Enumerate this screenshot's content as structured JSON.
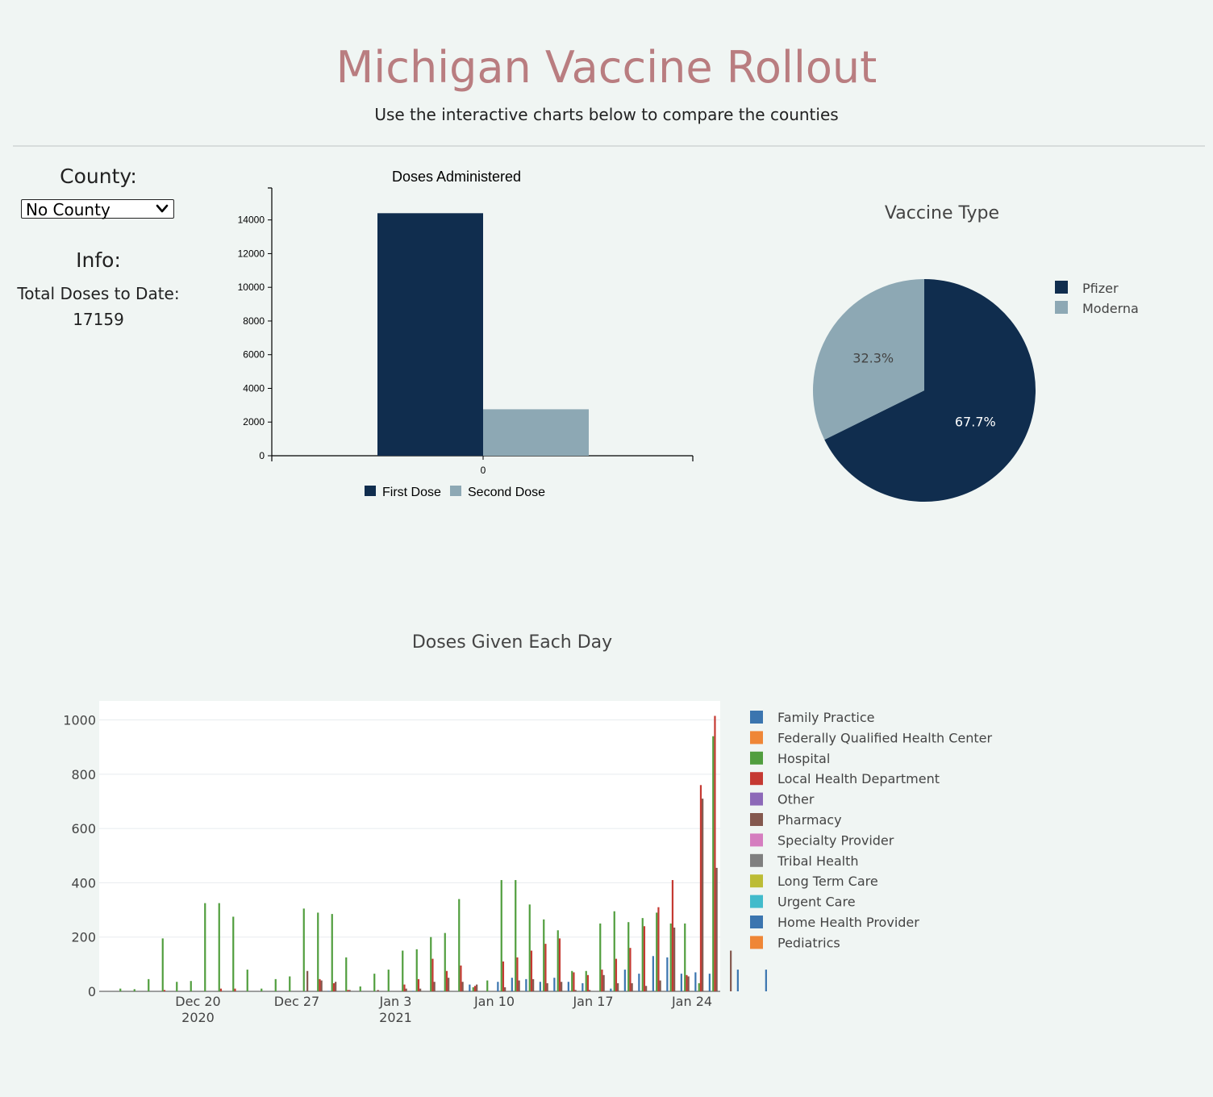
{
  "header": {
    "title": "Michigan Vaccine Rollout",
    "subtitle": "Use the interactive charts below to compare the counties"
  },
  "sidebar": {
    "county_label": "County:",
    "county_select": {
      "selected": "No County",
      "icon": "chevron-down-icon"
    },
    "info_label": "Info:",
    "total_doses_label": "Total Doses to Date:",
    "total_doses_value": "17159"
  },
  "colors": {
    "page_bg": "#f0f5f3",
    "title": "#b97d80",
    "first_dose": "#102d4e",
    "second_dose": "#8da8b4"
  },
  "chart_data": [
    {
      "id": "doses-administered",
      "type": "bar",
      "title": "Doses Administered",
      "categories": [
        "0"
      ],
      "series": [
        {
          "name": "First Dose",
          "values": [
            14400
          ],
          "color": "#102d4e"
        },
        {
          "name": "Second Dose",
          "values": [
            2759
          ],
          "color": "#8da8b4"
        }
      ],
      "yticks": [
        0,
        2000,
        4000,
        6000,
        8000,
        10000,
        12000,
        14000
      ],
      "ylim": [
        0,
        15900
      ],
      "legend": "bottom"
    },
    {
      "id": "vaccine-type",
      "type": "pie",
      "title": "Vaccine Type",
      "labels": [
        "Pfizer",
        "Moderna"
      ],
      "values": [
        67.7,
        32.3
      ],
      "value_labels": [
        "67.7%",
        "32.3%"
      ],
      "colors": [
        "#102d4e",
        "#8da8b4"
      ],
      "legend": "right"
    },
    {
      "id": "doses-given-each-day",
      "type": "bar",
      "title": "Doses Given Each Day",
      "x_start": "2020-12-14",
      "x_range": [
        "2020-12-13",
        "2021-01-26"
      ],
      "ylim": [
        0,
        1070
      ],
      "yticks": [
        0,
        200,
        400,
        600,
        800,
        1000
      ],
      "xticks": [
        {
          "date": "2020-12-20",
          "label": "Dec 20",
          "sub": "2020"
        },
        {
          "date": "2020-12-27",
          "label": "Dec 27",
          "sub": ""
        },
        {
          "date": "2021-01-03",
          "label": "Jan 3",
          "sub": "2021"
        },
        {
          "date": "2021-01-10",
          "label": "Jan 10",
          "sub": ""
        },
        {
          "date": "2021-01-17",
          "label": "Jan 17",
          "sub": ""
        },
        {
          "date": "2021-01-24",
          "label": "Jan 24",
          "sub": ""
        }
      ],
      "legend": "right",
      "series": [
        {
          "name": "Family Practice",
          "color": "#3b75af",
          "values": [
            0,
            0,
            0,
            0,
            0,
            0,
            0,
            0,
            0,
            0,
            0,
            0,
            0,
            0,
            0,
            2,
            0,
            0,
            0,
            0,
            0,
            2,
            0,
            2,
            0,
            25,
            0,
            35,
            50,
            45,
            35,
            50,
            35,
            30,
            0,
            10,
            80,
            65,
            130,
            125,
            65,
            70,
            65,
            0,
            80,
            0,
            80
          ]
        },
        {
          "name": "Federally Qualified Health Center",
          "color": "#ef8636",
          "values": [
            0,
            0,
            0,
            0,
            0,
            0,
            0,
            0,
            0,
            0,
            0,
            0,
            0,
            0,
            0,
            0,
            0,
            0,
            0,
            0,
            0,
            0,
            0,
            0,
            0,
            0,
            0,
            0,
            0,
            0,
            0,
            0,
            0,
            0,
            0,
            0,
            0,
            0,
            0,
            0,
            0,
            0,
            0,
            0,
            0,
            0,
            0
          ]
        },
        {
          "name": "Hospital",
          "color": "#519e3e",
          "values": [
            10,
            8,
            45,
            195,
            35,
            38,
            325,
            325,
            275,
            80,
            10,
            45,
            55,
            305,
            290,
            285,
            125,
            18,
            65,
            80,
            150,
            155,
            200,
            215,
            340,
            15,
            40,
            410,
            410,
            320,
            265,
            225,
            75,
            75,
            250,
            295,
            255,
            270,
            290,
            250,
            250,
            30,
            940
          ]
        },
        {
          "name": "Local Health Department",
          "color": "#c53932",
          "values": [
            0,
            0,
            0,
            5,
            0,
            0,
            0,
            10,
            10,
            0,
            0,
            0,
            0,
            0,
            45,
            30,
            5,
            0,
            0,
            0,
            25,
            45,
            120,
            75,
            95,
            20,
            0,
            110,
            125,
            150,
            175,
            195,
            70,
            60,
            80,
            120,
            160,
            240,
            310,
            410,
            60,
            760,
            1015
          ]
        },
        {
          "name": "Other",
          "color": "#8d69b8",
          "values": []
        },
        {
          "name": "Pharmacy",
          "color": "#84584e",
          "values": [
            0,
            0,
            0,
            0,
            0,
            0,
            0,
            0,
            0,
            0,
            0,
            0,
            0,
            75,
            40,
            35,
            5,
            0,
            5,
            0,
            10,
            10,
            35,
            50,
            35,
            25,
            0,
            15,
            40,
            45,
            30,
            35,
            5,
            5,
            60,
            30,
            30,
            20,
            40,
            235,
            55,
            710,
            455,
            150
          ]
        },
        {
          "name": "Specialty Provider",
          "color": "#d57dbf",
          "values": []
        },
        {
          "name": "Tribal Health",
          "color": "#7f7f7f",
          "values": []
        },
        {
          "name": "Long Term Care",
          "color": "#bcbc35",
          "values": []
        },
        {
          "name": "Urgent Care",
          "color": "#42bbcb",
          "values": []
        },
        {
          "name": "Home Health Provider",
          "color": "#3b75af",
          "values": []
        },
        {
          "name": "Pediatrics",
          "color": "#ef8636",
          "values": []
        }
      ]
    }
  ]
}
